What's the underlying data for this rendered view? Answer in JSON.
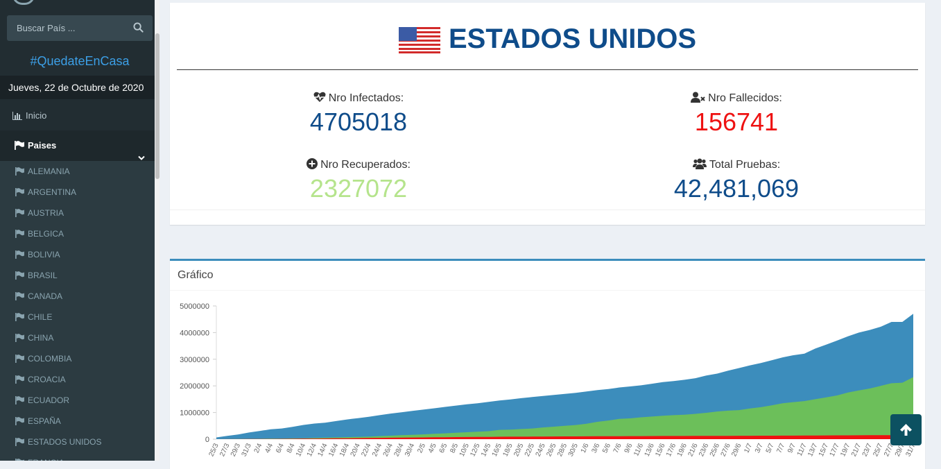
{
  "sidebar": {
    "search": {
      "placeholder": "Buscar País ..."
    },
    "hashtag": "#QuedateEnCasa",
    "date": "Jueves, 22 de Octubre de 2020",
    "menu": {
      "inicio": "Inicio",
      "paises": "Paises"
    },
    "countries": [
      "ALEMANIA",
      "ARGENTINA",
      "AUSTRIA",
      "BELGICA",
      "BOLIVIA",
      "BRASIL",
      "CANADA",
      "CHILE",
      "CHINA",
      "COLOMBIA",
      "CROACIA",
      "ECUADOR",
      "ESPAÑA",
      "ESTADOS UNIDOS",
      "FRANCIA"
    ]
  },
  "country": {
    "name": "ESTADOS UNIDOS",
    "flag_icon": "us-flag-icon",
    "stats": {
      "infectados": {
        "label": "Nro Infectados:",
        "value": "4705018",
        "color": "#0f4c8a"
      },
      "fallecidos": {
        "label": "Nro Fallecidos:",
        "value": "156741",
        "color": "#ee1111"
      },
      "recuperados": {
        "label": "Nro Recuperados:",
        "value": "2327072",
        "color": "#b5e48c"
      },
      "pruebas": {
        "label": "Total Pruebas:",
        "value": "42,481,069",
        "color": "#0f4c8a"
      }
    }
  },
  "chart_card": {
    "title": "Gráfico"
  },
  "chart_data": {
    "type": "area",
    "ylim": [
      0,
      5000000
    ],
    "yticks": [
      0,
      1000000,
      2000000,
      3000000,
      4000000,
      5000000
    ],
    "ytick_labels": [
      "0",
      "1000000",
      "2000000",
      "3000000",
      "4000000",
      "5000000"
    ],
    "x_labels": [
      "25/3",
      "27/3",
      "29/3",
      "31/3",
      "2/4",
      "4/4",
      "6/4",
      "8/4",
      "10/4",
      "12/4",
      "14/4",
      "16/4",
      "18/4",
      "20/4",
      "22/4",
      "24/4",
      "26/4",
      "28/4",
      "30/4",
      "2/5",
      "4/5",
      "6/5",
      "8/5",
      "10/5",
      "12/5",
      "14/5",
      "16/5",
      "18/5",
      "20/5",
      "22/5",
      "24/5",
      "26/5",
      "28/5",
      "30/5",
      "1/6",
      "3/6",
      "5/6",
      "7/6",
      "9/6",
      "11/6",
      "13/6",
      "15/6",
      "17/6",
      "19/6",
      "21/6",
      "23/6",
      "25/6",
      "27/6",
      "29/6",
      "1/7",
      "3/7",
      "5/7",
      "7/7",
      "9/7",
      "11/7",
      "13/7",
      "15/7",
      "17/7",
      "19/7",
      "21/7",
      "23/7",
      "25/7",
      "27/7",
      "29/7",
      "31/7"
    ],
    "series": [
      {
        "color": "#3c8dbc",
        "values": [
          66000,
          122000,
          175000,
          250000,
          310000,
          370000,
          400000,
          460000,
          535000,
          585000,
          620000,
          680000,
          740000,
          790000,
          840000,
          900000,
          960000,
          1010000,
          1060000,
          1110000,
          1160000,
          1210000,
          1260000,
          1310000,
          1350000,
          1400000,
          1450000,
          1490000,
          1540000,
          1580000,
          1620000,
          1660000,
          1700000,
          1740000,
          1790000,
          1840000,
          1880000,
          1940000,
          1980000,
          2020000,
          2080000,
          2140000,
          2180000,
          2230000,
          2290000,
          2390000,
          2460000,
          2570000,
          2670000,
          2770000,
          2860000,
          2960000,
          3070000,
          3150000,
          3210000,
          3400000,
          3550000,
          3700000,
          3860000,
          4000000,
          4100000,
          4220000,
          4400000,
          4400000,
          4705018
        ]
      },
      {
        "color": "#6cbf5a",
        "values": [
          1000,
          2000,
          5000,
          10000,
          13000,
          18000,
          22000,
          28000,
          35000,
          45000,
          55000,
          65000,
          75000,
          85000,
          95000,
          115000,
          130000,
          150000,
          165000,
          180000,
          200000,
          220000,
          240000,
          260000,
          280000,
          300000,
          350000,
          360000,
          380000,
          400000,
          440000,
          470000,
          500000,
          530000,
          580000,
          650000,
          700000,
          760000,
          780000,
          820000,
          850000,
          880000,
          900000,
          920000,
          950000,
          990000,
          1040000,
          1070000,
          1090000,
          1150000,
          1200000,
          1270000,
          1350000,
          1390000,
          1430000,
          1500000,
          1570000,
          1640000,
          1750000,
          1830000,
          1900000,
          2000000,
          2100000,
          2120000,
          2327072
        ]
      },
      {
        "color": "#ee1111",
        "values": [
          1000,
          2000,
          3000,
          5000,
          7000,
          9000,
          11000,
          14000,
          18000,
          22000,
          26000,
          30000,
          35000,
          40000,
          45000,
          50000,
          54000,
          58000,
          62000,
          66000,
          70000,
          74000,
          78000,
          81000,
          84000,
          87000,
          90000,
          93000,
          95000,
          97000,
          99000,
          101000,
          103000,
          105000,
          107000,
          109000,
          111000,
          113000,
          114000,
          115000,
          117000,
          119000,
          120000,
          121000,
          122000,
          123000,
          125000,
          126000,
          127000,
          128000,
          130000,
          131000,
          133000,
          134000,
          136000,
          138000,
          140000,
          142000,
          144000,
          146000,
          148000,
          150000,
          152000,
          154000,
          156741
        ]
      }
    ]
  }
}
